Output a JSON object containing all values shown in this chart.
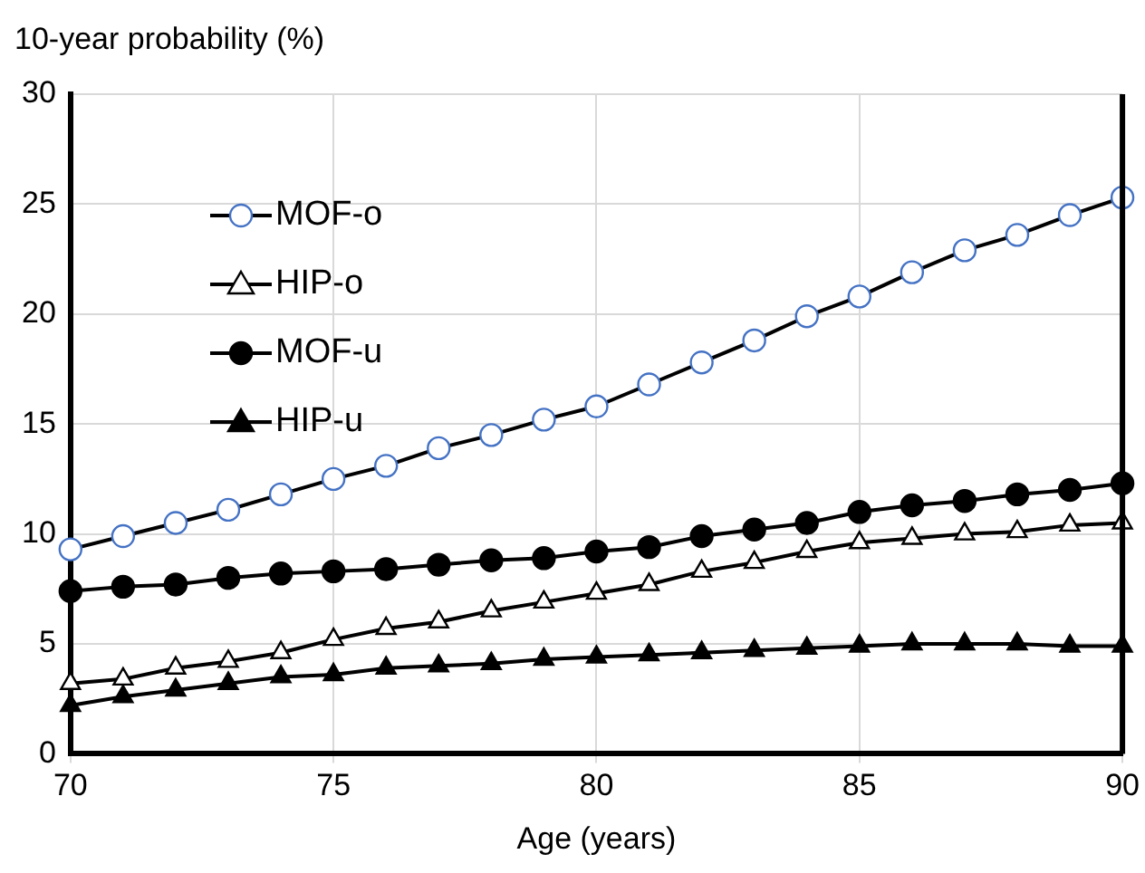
{
  "chart_data": {
    "type": "line",
    "ylabel": "10-year probability (%)",
    "xlabel": "Age (years)",
    "x": [
      70,
      71,
      72,
      73,
      74,
      75,
      76,
      77,
      78,
      79,
      80,
      81,
      82,
      83,
      84,
      85,
      86,
      87,
      88,
      89,
      90
    ],
    "xlim": [
      70,
      90
    ],
    "xticks": [
      70,
      75,
      80,
      85,
      90
    ],
    "ylim": [
      0,
      30
    ],
    "yticks": [
      0,
      5,
      10,
      15,
      20,
      25,
      30
    ],
    "grid": true,
    "legend": "top left",
    "line_style": "solid",
    "series": [
      {
        "name": "MOF-o",
        "color": "#4472c4",
        "marker": "circle",
        "values": [
          9.3,
          9.9,
          10.5,
          11.1,
          11.8,
          12.5,
          13.1,
          13.9,
          14.5,
          15.2,
          15.8,
          16.8,
          17.8,
          18.8,
          19.9,
          20.8,
          21.9,
          22.9,
          23.6,
          24.5,
          25.3
        ]
      },
      {
        "name": "HIP-o",
        "color": "#ffffff",
        "marker": "triangle",
        "values": [
          3.2,
          3.4,
          3.9,
          4.2,
          4.6,
          5.2,
          5.7,
          6.0,
          6.5,
          6.9,
          7.3,
          7.7,
          8.3,
          8.7,
          9.2,
          9.6,
          9.8,
          10.0,
          10.1,
          10.4,
          10.5
        ]
      },
      {
        "name": "MOF-u",
        "color": "#000000",
        "marker": "circle",
        "values": [
          7.4,
          7.6,
          7.7,
          8.0,
          8.2,
          8.3,
          8.4,
          8.6,
          8.8,
          8.9,
          9.2,
          9.4,
          9.9,
          10.2,
          10.5,
          11.0,
          11.3,
          11.5,
          11.8,
          12.0,
          12.3
        ]
      },
      {
        "name": "HIP-u",
        "color": "#000000",
        "marker": "triangle",
        "values": [
          2.2,
          2.6,
          2.9,
          3.2,
          3.5,
          3.6,
          3.9,
          4.0,
          4.1,
          4.3,
          4.4,
          4.5,
          4.6,
          4.7,
          4.8,
          4.9,
          5.0,
          5.0,
          5.0,
          4.9,
          4.9
        ]
      }
    ]
  }
}
